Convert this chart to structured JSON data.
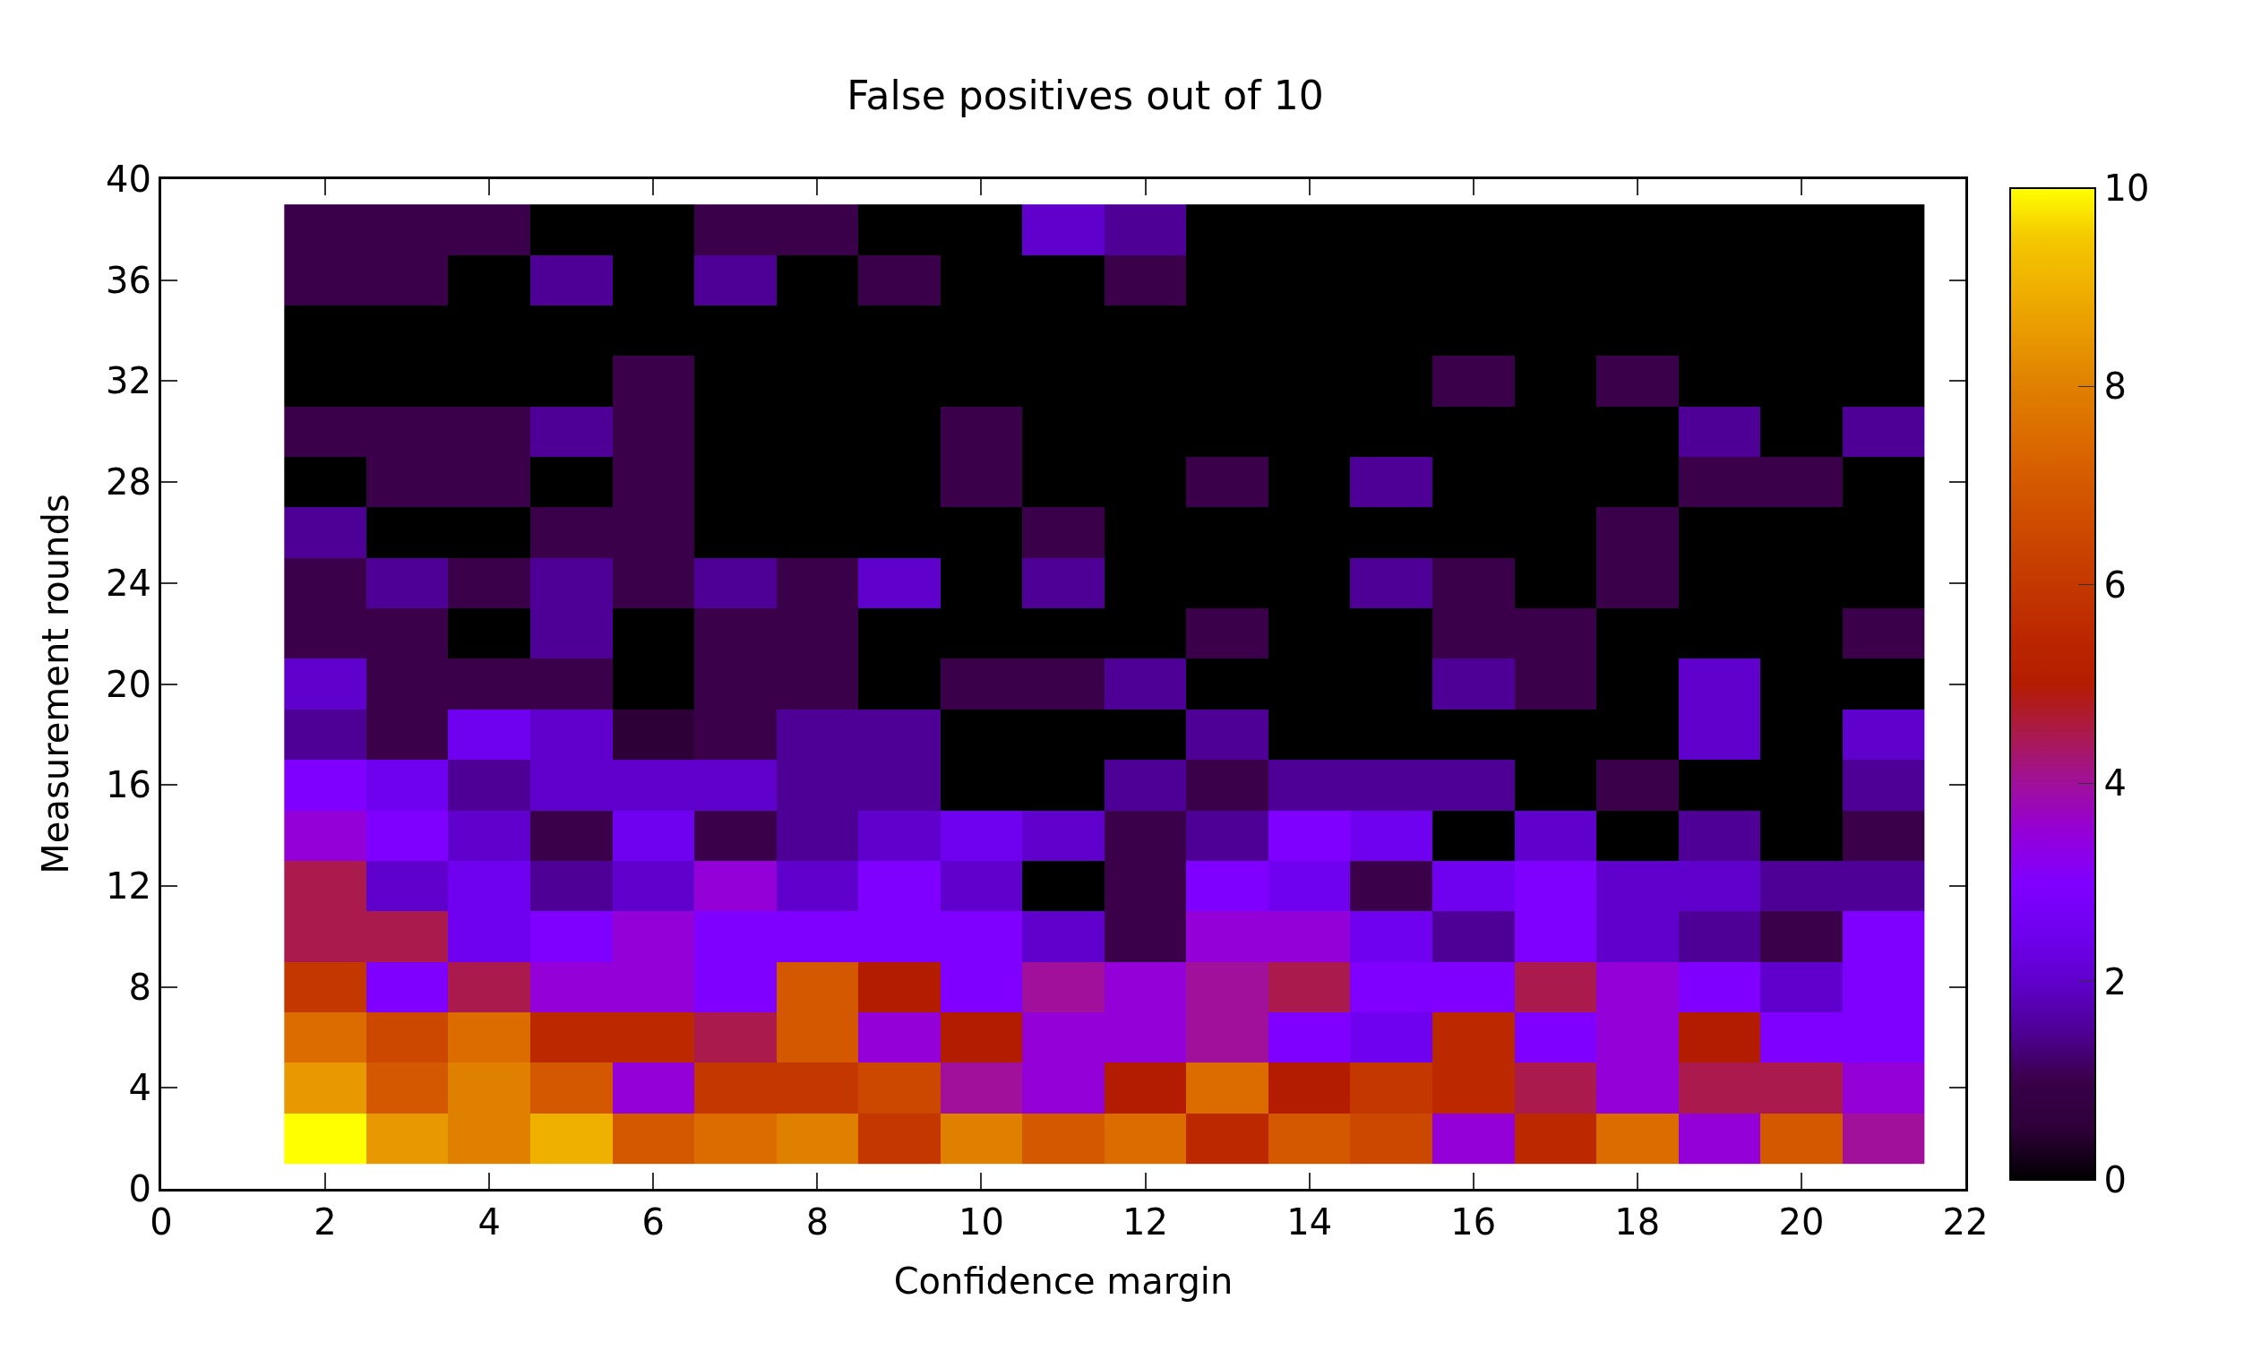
{
  "chart_data": {
    "type": "heatmap",
    "title": "False positives out of 10",
    "xlabel": "Confidence margin",
    "ylabel": "Measurement rounds",
    "x": [
      2,
      3,
      4,
      5,
      6,
      7,
      8,
      9,
      10,
      11,
      12,
      13,
      14,
      15,
      16,
      17,
      18,
      19,
      20,
      21
    ],
    "y": [
      38,
      36,
      34,
      32,
      30,
      28,
      26,
      24,
      22,
      20,
      18,
      16,
      14,
      12,
      10,
      8,
      6,
      4,
      2
    ],
    "cells": [
      [
        1,
        1,
        1,
        0,
        0,
        1,
        1,
        0,
        0,
        2,
        1.5,
        0,
        0,
        0,
        0,
        0,
        0,
        0,
        0,
        0
      ],
      [
        1,
        1,
        0,
        1.5,
        0,
        1.5,
        0,
        1,
        0,
        0,
        1,
        0,
        0,
        0,
        0,
        0,
        0,
        0,
        0,
        0
      ],
      [
        0,
        0,
        0,
        0,
        0,
        0,
        0,
        0,
        0,
        0,
        0,
        0,
        0,
        0,
        0,
        0,
        0,
        0,
        0,
        0
      ],
      [
        0,
        0,
        0,
        0,
        1,
        0,
        0,
        0,
        0,
        0,
        0,
        0,
        0,
        0,
        1,
        0,
        1,
        0,
        0,
        0
      ],
      [
        1,
        1,
        1,
        1.5,
        1,
        0,
        0,
        0,
        1,
        0,
        0,
        0,
        0,
        0,
        0,
        0,
        0,
        1.5,
        0,
        1.5
      ],
      [
        0,
        1,
        1,
        0,
        1,
        0,
        0,
        0,
        1,
        0,
        0,
        1,
        0,
        1.5,
        0,
        0,
        0,
        1,
        1,
        0
      ],
      [
        1.5,
        0,
        0,
        1,
        1,
        0,
        0,
        0,
        0,
        1,
        0,
        0,
        0,
        0,
        0,
        0,
        1,
        0,
        0,
        0
      ],
      [
        1,
        1.5,
        1,
        1.5,
        1,
        1.5,
        1,
        2,
        0,
        1.5,
        0,
        0,
        0,
        1.5,
        1,
        0,
        1,
        0,
        0,
        0
      ],
      [
        1,
        1,
        0,
        1.5,
        0,
        1,
        1,
        0,
        0,
        0,
        0,
        1,
        0,
        0,
        1,
        1,
        0,
        0,
        0,
        1
      ],
      [
        2,
        1,
        1,
        1,
        0,
        1,
        1,
        0,
        1,
        1,
        1.5,
        0,
        0,
        0,
        1.5,
        1,
        0,
        2,
        0,
        0
      ],
      [
        1.5,
        1,
        2.5,
        2,
        0.5,
        1,
        1.5,
        1.5,
        0,
        0,
        0,
        1.5,
        0,
        0,
        0,
        0,
        0,
        2,
        0,
        2
      ],
      [
        3,
        2.5,
        1.5,
        2,
        2,
        2,
        1.5,
        1.5,
        0,
        0,
        1.5,
        1,
        1.5,
        1.5,
        1.5,
        0,
        1,
        0,
        0,
        1.5
      ],
      [
        3.5,
        3,
        2,
        1,
        2.5,
        1,
        1.5,
        2,
        2.5,
        2,
        1,
        1.5,
        3,
        2.5,
        0,
        2,
        0,
        1.5,
        0,
        1
      ],
      [
        4.5,
        2,
        2.5,
        1.5,
        2,
        3.5,
        2,
        3,
        2,
        0,
        1,
        3,
        2.5,
        1,
        2.5,
        3,
        2,
        2,
        1.5,
        1.5
      ],
      [
        4.5,
        4.5,
        2.5,
        3,
        3.5,
        3,
        3,
        3,
        3,
        2,
        1,
        3.5,
        3.5,
        2.5,
        1.5,
        3,
        2,
        1.5,
        1,
        3
      ],
      [
        6,
        3,
        4.5,
        3.5,
        3.5,
        3,
        7,
        5,
        3,
        4,
        3.5,
        4,
        4.5,
        3,
        3,
        4.5,
        3.5,
        3,
        2,
        3
      ],
      [
        7.5,
        6.5,
        7.5,
        5.5,
        5.5,
        4.5,
        7,
        3.5,
        5,
        3.5,
        3.5,
        4,
        3,
        2.5,
        5.5,
        3,
        3.5,
        5,
        3,
        3
      ],
      [
        8.5,
        7,
        8,
        7,
        3.5,
        6,
        6,
        6.5,
        4,
        3.5,
        5,
        7.5,
        5,
        6,
        5.5,
        4.5,
        3.5,
        4.5,
        4.5,
        3.5
      ],
      [
        10,
        8.5,
        8,
        9,
        7,
        7.5,
        8,
        6,
        8,
        7,
        7.5,
        5.5,
        7,
        6.5,
        3.5,
        5.5,
        7.5,
        3.5,
        7,
        4
      ]
    ],
    "xlim": [
      0,
      22
    ],
    "xticks": [
      0,
      2,
      4,
      6,
      8,
      10,
      12,
      14,
      16,
      18,
      20,
      22
    ],
    "ylim": [
      0,
      40
    ],
    "yticks": [
      0,
      4,
      8,
      12,
      16,
      20,
      24,
      28,
      32,
      36,
      40
    ],
    "clim": [
      0,
      10
    ],
    "cticks": [
      0,
      2,
      4,
      6,
      8,
      10
    ]
  }
}
